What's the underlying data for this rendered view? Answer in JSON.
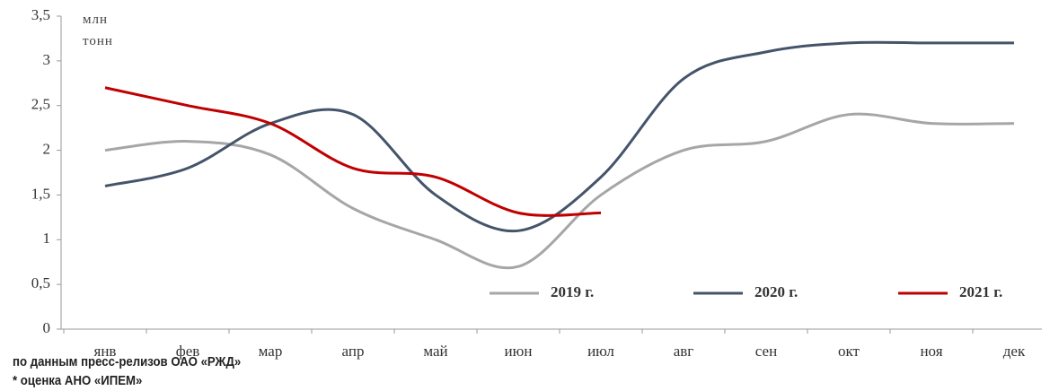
{
  "chart_data": {
    "type": "line",
    "y_label": "млн тонн",
    "categories": [
      "янв",
      "фев",
      "мар",
      "апр",
      "май",
      "июн",
      "июл",
      "авг",
      "сен",
      "окт",
      "ноя",
      "дек"
    ],
    "series": [
      {
        "name": "2019 г.",
        "color": "#a6a6a6",
        "values": [
          2.0,
          2.1,
          1.95,
          1.35,
          1.0,
          0.7,
          1.5,
          2.0,
          2.1,
          2.4,
          2.3,
          2.3
        ]
      },
      {
        "name": "2020 г.",
        "color": "#44546a",
        "values": [
          1.6,
          1.8,
          2.3,
          2.4,
          1.5,
          1.1,
          1.7,
          2.8,
          3.1,
          3.2,
          3.2,
          3.2
        ]
      },
      {
        "name": "2021 г.",
        "color": "#c00000",
        "values": [
          2.7,
          2.5,
          2.3,
          1.8,
          1.7,
          1.3,
          1.3,
          null,
          null,
          null,
          null,
          null
        ]
      }
    ],
    "ylim": [
      0,
      3.5
    ],
    "yticks": [
      0,
      {
        "value": 0.5,
        "label": "0,5"
      },
      1,
      {
        "value": 1.5,
        "label": "1,5"
      },
      2,
      {
        "value": 2.5,
        "label": "2,5"
      },
      3,
      {
        "value": 3.5,
        "label": "3,5"
      }
    ],
    "legend": "bottom-right",
    "notes": [
      "по данным пресс-релизов ОАО «РЖД»",
      "* оценка АНО «ИПЕМ»"
    ]
  }
}
